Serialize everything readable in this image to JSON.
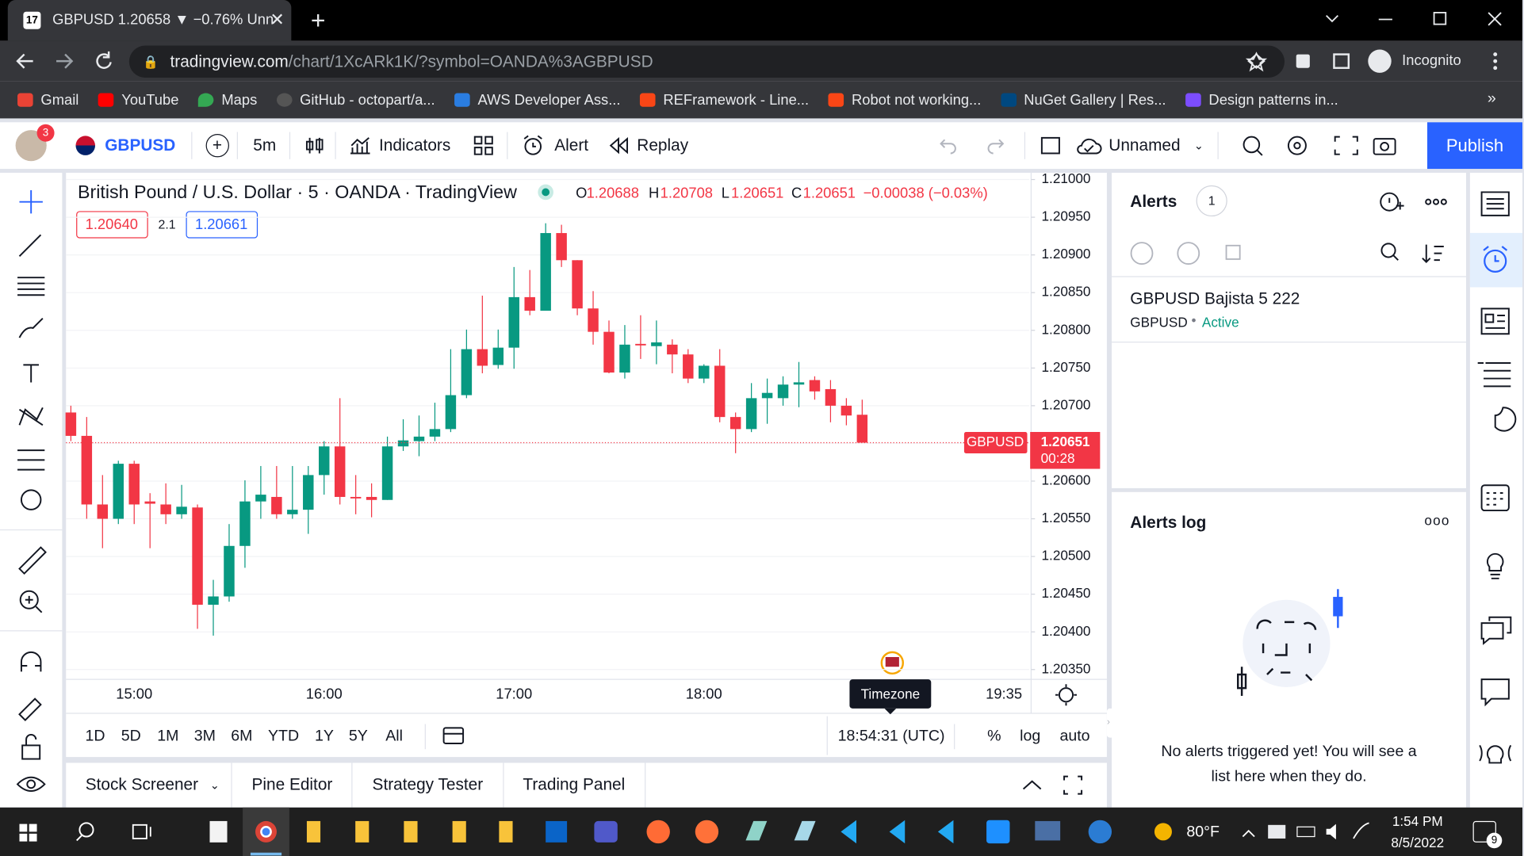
{
  "browser": {
    "tab_title": "GBPUSD 1.20658 ▼ −0.76% Unn",
    "url_host": "tradingview.com",
    "url_path": "/chart/1XcARk1K/?symbol=OANDA%3AGBPUSD",
    "profile": "Incognito",
    "bookmarks": [
      "Gmail",
      "YouTube",
      "Maps",
      "GitHub - octopart/a...",
      "AWS Developer Ass...",
      "REFramework - Line...",
      "Robot not working...",
      "NuGet Gallery | Res...",
      "Design patterns in..."
    ]
  },
  "toolbar": {
    "notifications": "3",
    "symbol": "GBPUSD",
    "interval": "5m",
    "indicators": "Indicators",
    "alert": "Alert",
    "replay": "Replay",
    "layout": "Unnamed",
    "publish": "Publish"
  },
  "chart_data": {
    "type": "candlestick",
    "title": "British Pound / U.S. Dollar · 5 · OANDA · TradingView",
    "ohlc_letters": [
      "O",
      "H",
      "L",
      "C"
    ],
    "change": "−0.00038 (−0.03%)",
    "bid": "1.20640",
    "spread": "2.1",
    "ask": "1.20661",
    "symbol_tag": "GBPUSD",
    "countdown": "00:28",
    "up_color": "#089981",
    "down_color": "#f23645",
    "categories": [
      null,
      null,
      null,
      null,
      "15:00",
      null,
      null,
      null,
      null,
      null,
      null,
      null,
      null,
      null,
      null,
      null,
      "16:00",
      null,
      null,
      null,
      null,
      null,
      null,
      null,
      null,
      null,
      null,
      null,
      "17:00",
      null,
      null,
      null,
      null,
      null,
      null,
      null,
      null,
      null,
      null,
      null,
      "18:00",
      null,
      null,
      null,
      null,
      null,
      null,
      null,
      null,
      null,
      null
    ],
    "x_axis_end_label": "19:35",
    "open": [
      1.20691,
      1.2066,
      1.20569,
      1.2055,
      1.20623,
      1.20573,
      1.20569,
      1.20556,
      1.20565,
      1.20436,
      1.20447,
      1.20514,
      1.20573,
      1.20579,
      1.20556,
      1.20562,
      1.20608,
      1.20646,
      1.20579,
      1.20579,
      1.20575,
      1.20646,
      1.20653,
      1.20659,
      1.20669,
      1.20714,
      1.20775,
      1.20754,
      1.20777,
      1.20844,
      1.20826,
      1.20929,
      1.20893,
      1.20829,
      1.20798,
      1.20744,
      1.20782,
      1.20779,
      1.20781,
      1.20768,
      1.20736,
      1.20753,
      1.20685,
      1.20669,
      1.2071,
      1.2071,
      1.20728,
      1.20734,
      1.20722,
      1.207,
      1.20688
    ],
    "high": [
      1.207,
      1.20685,
      1.20608,
      1.20627,
      1.20627,
      1.20584,
      1.20597,
      1.20595,
      1.20569,
      1.20469,
      1.20543,
      1.20601,
      1.2062,
      1.2062,
      1.2062,
      1.2062,
      1.20653,
      1.2071,
      1.20608,
      1.20597,
      1.20659,
      1.20682,
      1.20687,
      1.20704,
      1.20775,
      1.20801,
      1.20846,
      1.20801,
      1.20884,
      1.2088,
      1.20942,
      1.2094,
      1.20893,
      1.20852,
      1.20813,
      1.20807,
      1.2082,
      1.20813,
      1.20788,
      1.20775,
      1.20755,
      1.20775,
      1.20691,
      1.2073,
      1.20736,
      1.20739,
      1.20758,
      1.20739,
      1.20734,
      1.2071,
      1.20708
    ],
    "low": [
      1.20653,
      1.2055,
      1.20511,
      1.20543,
      1.20543,
      1.20511,
      1.20543,
      1.2055,
      1.20404,
      1.20395,
      1.2044,
      1.20485,
      1.2055,
      1.2055,
      1.2055,
      1.2053,
      1.20582,
      1.20569,
      1.20556,
      1.20552,
      1.20575,
      1.2064,
      1.20633,
      1.20653,
      1.20665,
      1.2071,
      1.20743,
      1.20749,
      1.20749,
      1.2082,
      1.20826,
      1.20884,
      1.2082,
      1.20781,
      1.20743,
      1.20736,
      1.20762,
      1.20755,
      1.20743,
      1.2073,
      1.2073,
      1.20678,
      1.20637,
      1.20665,
      1.20676,
      1.207,
      1.20698,
      1.20708,
      1.20678,
      1.20674,
      1.20651
    ],
    "close": [
      1.2066,
      1.20569,
      1.2055,
      1.20623,
      1.20569,
      1.2057,
      1.20556,
      1.20566,
      1.20436,
      1.20447,
      1.20514,
      1.20573,
      1.20582,
      1.20556,
      1.20562,
      1.20608,
      1.20646,
      1.20579,
      1.20577,
      1.20575,
      1.20646,
      1.20654,
      1.20659,
      1.20669,
      1.20714,
      1.20775,
      1.20753,
      1.20777,
      1.20844,
      1.20826,
      1.20929,
      1.20893,
      1.20829,
      1.20798,
      1.20744,
      1.20781,
      1.2078,
      1.20784,
      1.20768,
      1.20736,
      1.20753,
      1.20685,
      1.20669,
      1.2071,
      1.20717,
      1.20728,
      1.20731,
      1.20719,
      1.207,
      1.20687,
      1.20651
    ],
    "ylim": [
      1.20337,
      1.21009
    ],
    "yticks": [
      {
        "value": 1.21,
        "label": "1.21000"
      },
      {
        "value": 1.2095,
        "label": "1.20950"
      },
      {
        "value": 1.209,
        "label": "1.20900"
      },
      {
        "value": 1.2085,
        "label": "1.20850"
      },
      {
        "value": 1.208,
        "label": "1.20800"
      },
      {
        "value": 1.2075,
        "label": "1.20750"
      },
      {
        "value": 1.207,
        "label": "1.20700"
      },
      {
        "value": 1.2065,
        "label": "1.20650"
      },
      {
        "value": 1.206,
        "label": "1.20600"
      },
      {
        "value": 1.2055,
        "label": "1.20550"
      },
      {
        "value": 1.205,
        "label": "1.20500"
      },
      {
        "value": 1.2045,
        "label": "1.20450"
      },
      {
        "value": 1.204,
        "label": "1.20400"
      },
      {
        "value": 1.2035,
        "label": "1.20350"
      }
    ],
    "grid": true
  },
  "range_bar": {
    "ranges": [
      "1D",
      "5D",
      "1M",
      "3M",
      "6M",
      "YTD",
      "1Y",
      "5Y",
      "All"
    ],
    "tooltip": "Timezone",
    "clock": "18:54:31 (UTC)",
    "options": [
      "%",
      "log",
      "auto"
    ]
  },
  "bottom_tabs": [
    "Stock Screener",
    "Pine Editor",
    "Strategy Tester",
    "Trading Panel"
  ],
  "alerts": {
    "title": "Alerts",
    "count": "1",
    "items": [
      {
        "name": "GBPUSD Bajista 5 222",
        "symbol": "GBPUSD",
        "status": "Active"
      }
    ],
    "log_title": "Alerts log",
    "empty_line1": "No alerts triggered yet! You will see a",
    "empty_line2": "list here when they do."
  },
  "taskbar": {
    "weather": "80°F",
    "time": "1:54 PM",
    "date": "8/5/2022",
    "badge": "9"
  }
}
